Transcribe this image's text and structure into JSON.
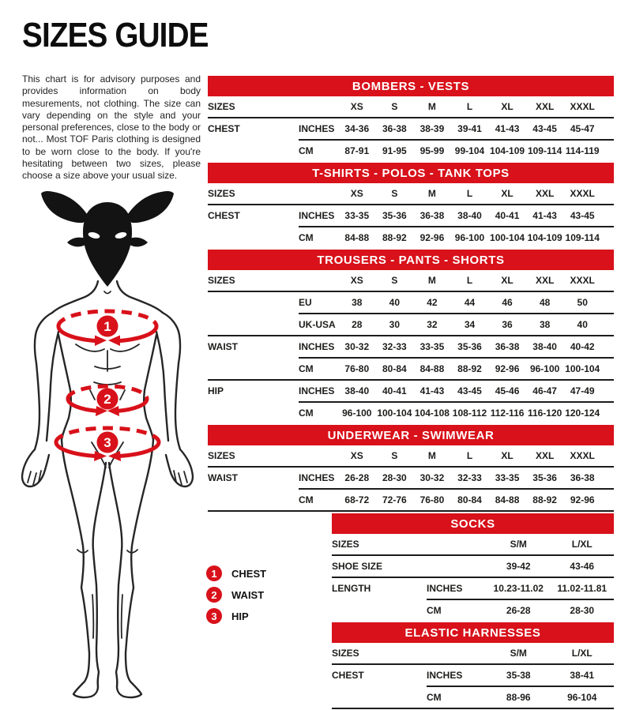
{
  "page": {
    "title": "SIZES GUIDE",
    "intro": "This chart is for advisory purposes and provides information on body mesurements, not clothing. The size can vary depending on the style and your personal preferences, close to the body or not... Most TOF Paris clothing is designed to be worn close to the body. If you're hesitating between two sizes, please choose a size above your usual size."
  },
  "colors": {
    "accent": "#d8111a",
    "ink": "#1d1d1b"
  },
  "figure": {
    "markers": [
      "1",
      "2",
      "3"
    ]
  },
  "legend": [
    {
      "num": "1",
      "label": "CHEST"
    },
    {
      "num": "2",
      "label": "WAIST"
    },
    {
      "num": "3",
      "label": "HIP"
    }
  ],
  "tables": [
    {
      "title": "BOMBERS - VESTS",
      "layout": "wide",
      "rows": [
        {
          "label": "SIZES",
          "unit": "",
          "values": [
            "XS",
            "S",
            "M",
            "L",
            "XL",
            "XXL",
            "XXXL"
          ],
          "divider": "full"
        },
        {
          "label": "CHEST",
          "unit": "INCHES",
          "values": [
            "34-36",
            "36-38",
            "38-39",
            "39-41",
            "41-43",
            "43-45",
            "45-47"
          ],
          "divider": "partial"
        },
        {
          "label": "",
          "unit": "CM",
          "values": [
            "87-91",
            "91-95",
            "95-99",
            "99-104",
            "104-109",
            "109-114",
            "114-119"
          ],
          "divider": "none"
        }
      ]
    },
    {
      "title": "T-SHIRTS - POLOS - TANK TOPS",
      "layout": "wide",
      "rows": [
        {
          "label": "SIZES",
          "unit": "",
          "values": [
            "XS",
            "S",
            "M",
            "L",
            "XL",
            "XXL",
            "XXXL"
          ],
          "divider": "full"
        },
        {
          "label": "CHEST",
          "unit": "INCHES",
          "values": [
            "33-35",
            "35-36",
            "36-38",
            "38-40",
            "40-41",
            "41-43",
            "43-45"
          ],
          "divider": "partial"
        },
        {
          "label": "",
          "unit": "CM",
          "values": [
            "84-88",
            "88-92",
            "92-96",
            "96-100",
            "100-104",
            "104-109",
            "109-114"
          ],
          "divider": "none"
        }
      ]
    },
    {
      "title": "TROUSERS - PANTS - SHORTS",
      "layout": "wide",
      "rows": [
        {
          "label": "SIZES",
          "unit": "",
          "values": [
            "XS",
            "S",
            "M",
            "L",
            "XL",
            "XXL",
            "XXXL"
          ],
          "divider": "full"
        },
        {
          "label": "",
          "unit": "EU",
          "values": [
            "38",
            "40",
            "42",
            "44",
            "46",
            "48",
            "50"
          ],
          "divider": "partial"
        },
        {
          "label": "",
          "unit": "UK-USA",
          "values": [
            "28",
            "30",
            "32",
            "34",
            "36",
            "38",
            "40"
          ],
          "divider": "full"
        },
        {
          "label": "WAIST",
          "unit": "INCHES",
          "values": [
            "30-32",
            "32-33",
            "33-35",
            "35-36",
            "36-38",
            "38-40",
            "40-42"
          ],
          "divider": "partial"
        },
        {
          "label": "",
          "unit": "CM",
          "values": [
            "76-80",
            "80-84",
            "84-88",
            "88-92",
            "92-96",
            "96-100",
            "100-104"
          ],
          "divider": "full"
        },
        {
          "label": "HIP",
          "unit": "INCHES",
          "values": [
            "38-40",
            "40-41",
            "41-43",
            "43-45",
            "45-46",
            "46-47",
            "47-49"
          ],
          "divider": "partial"
        },
        {
          "label": "",
          "unit": "CM",
          "values": [
            "96-100",
            "100-104",
            "104-108",
            "108-112",
            "112-116",
            "116-120",
            "120-124"
          ],
          "divider": "none"
        }
      ]
    },
    {
      "title": "UNDERWEAR - SWIMWEAR",
      "layout": "wide",
      "rows": [
        {
          "label": "SIZES",
          "unit": "",
          "values": [
            "XS",
            "S",
            "M",
            "L",
            "XL",
            "XXL",
            "XXXL"
          ],
          "divider": "full"
        },
        {
          "label": "WAIST",
          "unit": "INCHES",
          "values": [
            "26-28",
            "28-30",
            "30-32",
            "32-33",
            "33-35",
            "35-36",
            "36-38"
          ],
          "divider": "partial"
        },
        {
          "label": "",
          "unit": "CM",
          "values": [
            "68-72",
            "72-76",
            "76-80",
            "80-84",
            "84-88",
            "88-92",
            "92-96"
          ],
          "divider": "full"
        }
      ]
    },
    {
      "title": "SOCKS",
      "layout": "narrow",
      "rows": [
        {
          "label": "SIZES",
          "unit": "",
          "values": [
            "S/M",
            "L/XL"
          ],
          "divider": "full"
        },
        {
          "label": "SHOE SIZE",
          "unit": "",
          "values": [
            "39-42",
            "43-46"
          ],
          "divider": "full"
        },
        {
          "label": "LENGTH",
          "unit": "INCHES",
          "values": [
            "10.23-11.02",
            "11.02-11.81"
          ],
          "divider": "partial"
        },
        {
          "label": "",
          "unit": "CM",
          "values": [
            "26-28",
            "28-30"
          ],
          "divider": "none"
        }
      ]
    },
    {
      "title": "ELASTIC HARNESSES",
      "layout": "narrow",
      "rows": [
        {
          "label": "SIZES",
          "unit": "",
          "values": [
            "S/M",
            "L/XL"
          ],
          "divider": "full"
        },
        {
          "label": "CHEST",
          "unit": "INCHES",
          "values": [
            "35-38",
            "38-41"
          ],
          "divider": "partial"
        },
        {
          "label": "",
          "unit": "CM",
          "values": [
            "88-96",
            "96-104"
          ],
          "divider": "full"
        }
      ]
    }
  ]
}
